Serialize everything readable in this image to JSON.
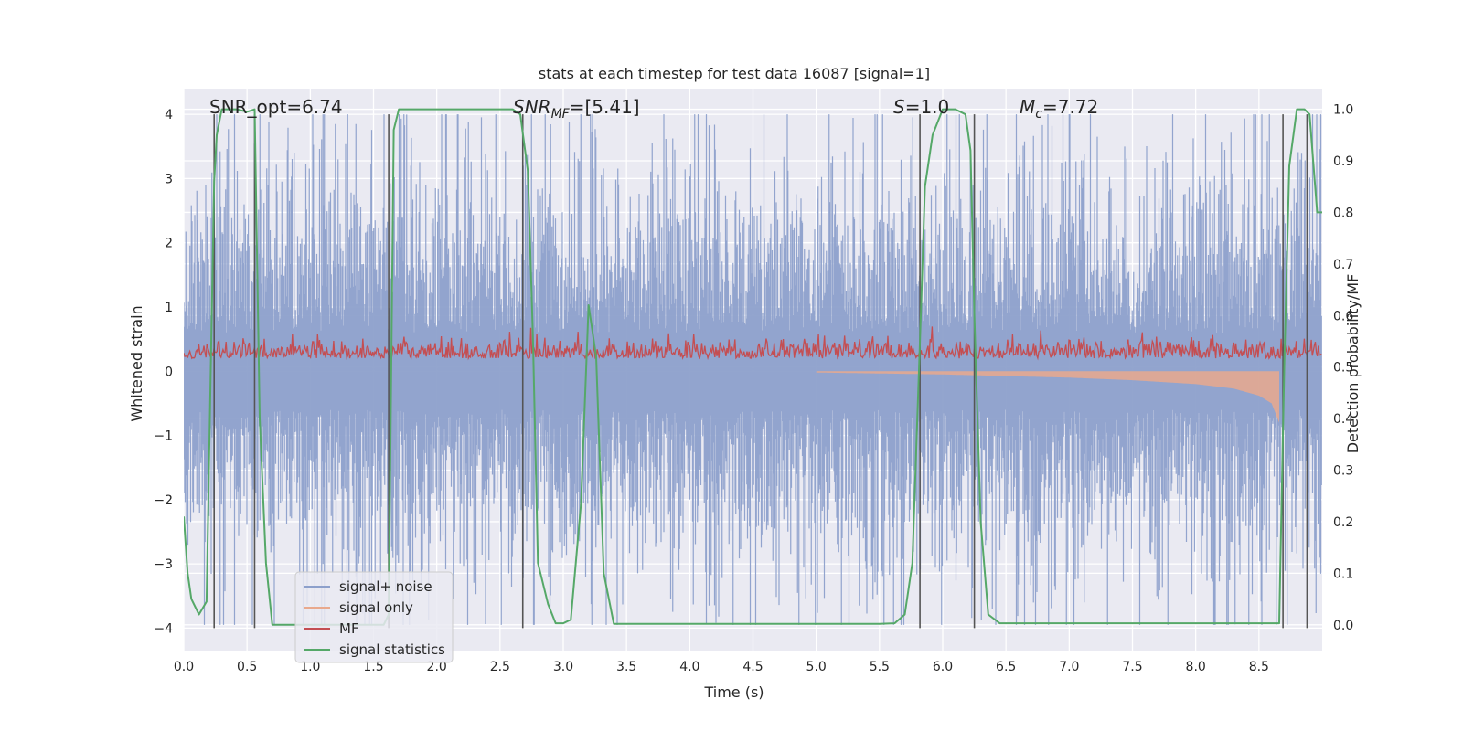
{
  "chart_data": {
    "type": "line",
    "title": "stats at each timestep for test data 16087 [signal=1]",
    "xlabel": "Time (s)",
    "ylabel": "Whitened strain",
    "ylabel_right": "Detection probability/MF",
    "xlim": [
      0,
      9.0
    ],
    "ylim": [
      -4.35,
      4.4
    ],
    "ylim_right": [
      -0.05,
      1.04
    ],
    "x_ticks": [
      "0.0",
      "0.5",
      "1.0",
      "1.5",
      "2.0",
      "2.5",
      "3.0",
      "3.5",
      "4.0",
      "4.5",
      "5.0",
      "5.5",
      "6.0",
      "6.5",
      "7.0",
      "7.5",
      "8.0",
      "8.5"
    ],
    "y_ticks": [
      "4",
      "3",
      "2",
      "1",
      "0",
      "−1",
      "−2",
      "−3",
      "−4"
    ],
    "y_ticks_right": [
      "1.0",
      "0.9",
      "0.8",
      "0.7",
      "0.6",
      "0.5",
      "0.4",
      "0.3",
      "0.2",
      "0.1",
      "0.0"
    ],
    "grid": true,
    "legend_position": "lower-left",
    "annotations": [
      {
        "text": "SNR_opt=6.74",
        "x": 0.2,
        "y": 4.0
      },
      {
        "text": "SNR",
        "sub": "MF",
        "suffix": "=[5.41]",
        "italic": true,
        "x": 2.6,
        "y": 4.0
      },
      {
        "text": "S",
        "suffix": "=1.0",
        "italic": true,
        "x": 5.6,
        "y": 4.0
      },
      {
        "text": "M",
        "sub": "c",
        "suffix": "=7.72",
        "italic": true,
        "x": 6.6,
        "y": 4.0
      }
    ],
    "vlines": [
      0.24,
      0.56,
      1.62,
      2.68,
      5.82,
      6.25,
      8.69,
      8.88
    ],
    "series": [
      {
        "name": "signal+ noise",
        "color": "#8da0cb",
        "axis": "left",
        "kind": "noise",
        "amplitude_range": [
          -3.95,
          4.0
        ]
      },
      {
        "name": "signal only",
        "color": "#e9a98d",
        "axis": "left",
        "kind": "chirp",
        "x": [
          5.0,
          6.0,
          7.0,
          7.5,
          8.0,
          8.3,
          8.5,
          8.6,
          8.66
        ],
        "envelope": [
          0.02,
          0.05,
          0.1,
          0.14,
          0.2,
          0.27,
          0.38,
          0.5,
          0.8
        ]
      },
      {
        "name": "MF",
        "color": "#c44e52",
        "axis": "left",
        "kind": "band",
        "range": [
          0.05,
          0.75
        ]
      },
      {
        "name": "signal statistics",
        "color": "#55a868",
        "axis": "right",
        "x": [
          0.0,
          0.03,
          0.06,
          0.12,
          0.18,
          0.24,
          0.26,
          0.3,
          0.34,
          0.42,
          0.5,
          0.56,
          0.6,
          0.65,
          0.7,
          0.75,
          1.58,
          1.62,
          1.66,
          1.7,
          1.76,
          2.6,
          2.66,
          2.72,
          2.76,
          2.8,
          2.88,
          2.94,
          3.0,
          3.06,
          3.14,
          3.2,
          3.26,
          3.32,
          3.4,
          5.2,
          5.5,
          5.62,
          5.7,
          5.76,
          5.82,
          5.86,
          5.92,
          6.0,
          6.1,
          6.18,
          6.22,
          6.25,
          6.3,
          6.36,
          6.45,
          8.62,
          8.66,
          8.7,
          8.74,
          8.8,
          8.86,
          8.9,
          8.96,
          9.0
        ],
        "y": [
          0.21,
          0.1,
          0.05,
          0.02,
          0.045,
          0.86,
          0.95,
          1.0,
          1.0,
          1.0,
          0.995,
          1.0,
          0.4,
          0.12,
          0.0,
          0.0,
          0.0,
          0.02,
          0.96,
          1.0,
          1.0,
          1.0,
          0.99,
          0.88,
          0.56,
          0.12,
          0.04,
          0.003,
          0.003,
          0.01,
          0.235,
          0.62,
          0.52,
          0.1,
          0.002,
          0.002,
          0.002,
          0.003,
          0.02,
          0.12,
          0.55,
          0.85,
          0.95,
          1.0,
          1.0,
          0.99,
          0.92,
          0.6,
          0.2,
          0.02,
          0.003,
          0.003,
          0.003,
          0.5,
          0.89,
          1.0,
          1.0,
          0.99,
          0.8,
          0.8
        ]
      }
    ]
  }
}
